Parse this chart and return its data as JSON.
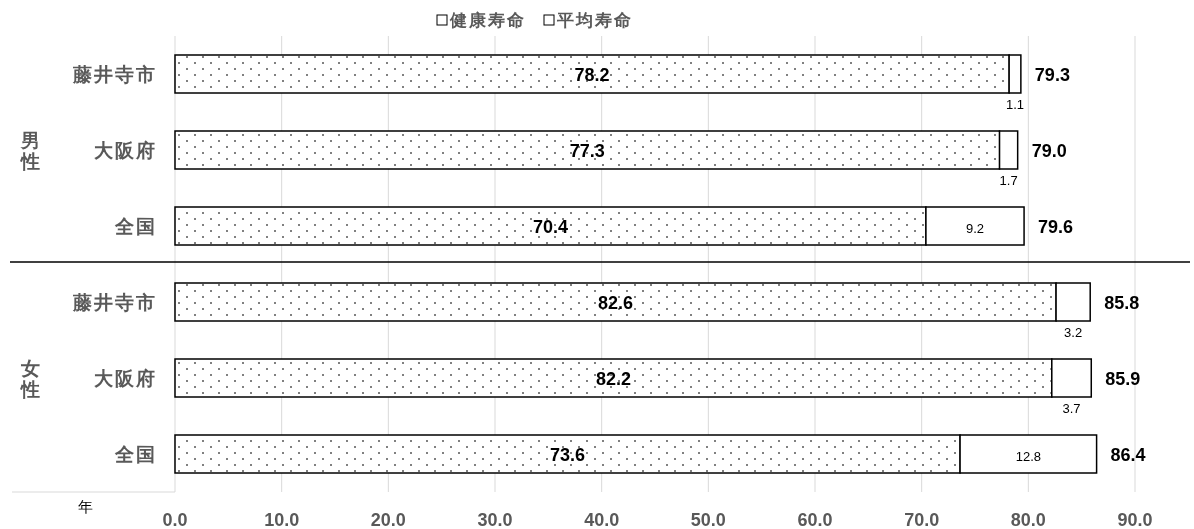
{
  "chart_data": [
    {
      "type": "bar",
      "orientation": "horizontal",
      "stacked": true,
      "ylabel": "男性",
      "categories": [
        "藤井寺市",
        "大阪府",
        "全国"
      ],
      "series": [
        {
          "name": "健康寿命",
          "color": "#ffffff",
          "values": [
            78.2,
            77.3,
            70.4
          ]
        },
        {
          "name": "平均寿命",
          "color": "#ffffff",
          "values": [
            1.1,
            1.7,
            9.2
          ]
        }
      ],
      "totals": [
        "79.3",
        "79.0",
        "79.6"
      ],
      "data_labels": true,
      "xlim": [
        0,
        90
      ],
      "xticks": [
        0,
        10,
        20,
        30,
        40,
        50,
        60,
        70,
        80,
        90
      ],
      "grid": "x",
      "legend": "top",
      "tick_labels": "y"
    },
    {
      "type": "bar",
      "orientation": "horizontal",
      "stacked": true,
      "ylabel": "女性",
      "xlabel": "年",
      "categories": [
        "藤井寺市",
        "大阪府",
        "全国"
      ],
      "series": [
        {
          "color": "#ffffff",
          "values": [
            82.6,
            82.2,
            73.6
          ]
        },
        {
          "color": "#ffffff",
          "values": [
            3.2,
            3.7,
            12.8
          ]
        }
      ],
      "totals": [
        "85.8",
        "85.9",
        "86.4"
      ],
      "data_labels": true,
      "xlim": [
        0,
        90
      ],
      "xticks": [
        {
          "value": 0,
          "label": "0.0"
        },
        {
          "value": 10,
          "label": "10.0"
        },
        {
          "value": 20,
          "label": "20.0"
        },
        {
          "value": 30,
          "label": "30.0"
        },
        {
          "value": 40,
          "label": "40.0"
        },
        {
          "value": 50,
          "label": "50.0"
        },
        {
          "value": 60,
          "label": "60.0"
        },
        {
          "value": 70,
          "label": "70.0"
        },
        {
          "value": 80,
          "label": "80.0"
        },
        {
          "value": 90,
          "label": "90.0"
        }
      ],
      "grid": "x"
    }
  ]
}
